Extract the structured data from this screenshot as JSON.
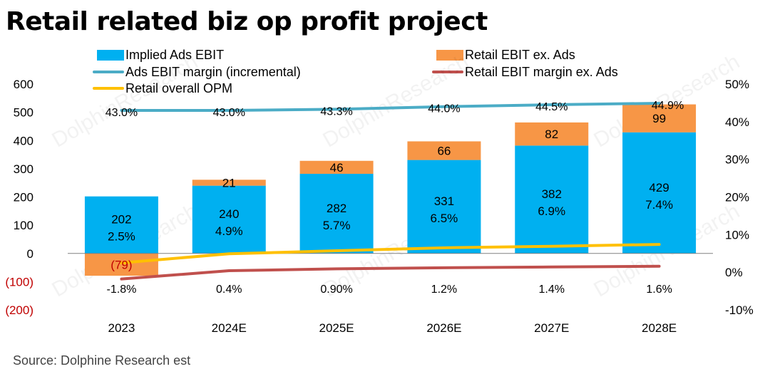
{
  "title": "Retail related biz op profit project",
  "source": "Source:  Dolphine Research est",
  "watermark": [
    "海豚投研",
    "DolphinResearch"
  ],
  "legend": {
    "implied_ads": "Implied Ads EBIT",
    "retail_ex_ads": "Retail EBIT ex. Ads",
    "ads_margin": "Ads EBIT margin (incremental)",
    "retail_margin_ex_ads": "Retail EBIT margin ex. Ads",
    "retail_opm": "Retail overall OPM"
  },
  "colors": {
    "implied_ads": "#00B0F0",
    "retail_ex_ads": "#F79646",
    "ads_margin": "#4BACC6",
    "retail_margin_ex_ads": "#C0504D",
    "retail_opm": "#FFC000",
    "negative_label": "#C00000"
  },
  "chart_data": {
    "type": "bar",
    "title": "Retail related biz op profit project",
    "categories": [
      "2023",
      "2024E",
      "2025E",
      "2026E",
      "2027E",
      "2028E"
    ],
    "left_axis": {
      "range": [
        -200,
        600
      ],
      "ticks": [
        600,
        500,
        400,
        300,
        200,
        100,
        0,
        -100,
        -200
      ],
      "tick_labels": [
        "600",
        "500",
        "400",
        "300",
        "200",
        "100",
        "0",
        "(100)",
        "(200)"
      ]
    },
    "right_axis": {
      "range": [
        -10,
        50
      ],
      "ticks": [
        50,
        40,
        30,
        20,
        10,
        0,
        -10
      ],
      "tick_labels": [
        "50%",
        "40%",
        "30%",
        "20%",
        "10%",
        "0%",
        "-10%"
      ]
    },
    "bars": [
      {
        "name": "Implied Ads EBIT",
        "values": [
          202,
          240,
          282,
          331,
          382,
          429
        ],
        "labels": [
          "202",
          "240",
          "282",
          "331",
          "382",
          "429"
        ]
      },
      {
        "name": "Retail EBIT ex. Ads",
        "values": [
          -79,
          21,
          46,
          66,
          82,
          99
        ],
        "labels": [
          "(79)",
          "21",
          "46",
          "66",
          "82",
          "99"
        ]
      }
    ],
    "lines": [
      {
        "name": "Ads EBIT margin (incremental)",
        "values": [
          43.0,
          43.0,
          43.3,
          44.0,
          44.5,
          44.9
        ],
        "labels": [
          "43.0%",
          "43.0%",
          "43.3%",
          "44.0%",
          "44.5%",
          "44.9%"
        ]
      },
      {
        "name": "Retail EBIT margin ex. Ads",
        "values": [
          -1.8,
          0.4,
          0.9,
          1.2,
          1.4,
          1.6
        ],
        "labels": [
          "-1.8%",
          "0.4%",
          "0.90%",
          "1.2%",
          "1.4%",
          "1.6%"
        ]
      },
      {
        "name": "Retail overall OPM",
        "values": [
          2.5,
          4.9,
          5.7,
          6.5,
          6.9,
          7.4
        ],
        "labels": [
          "2.5%",
          "4.9%",
          "5.7%",
          "6.5%",
          "6.9%",
          "7.4%"
        ]
      }
    ]
  }
}
